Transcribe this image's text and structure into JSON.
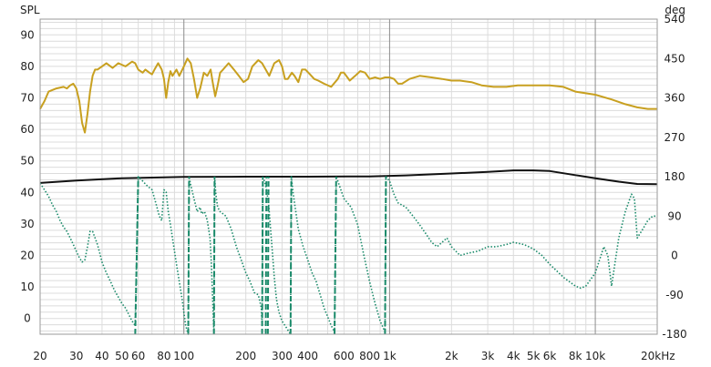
{
  "chart_data": {
    "type": "line",
    "left_axis_unit": "SPL",
    "right_axis_unit": "deg",
    "x_scale": "log",
    "x_range": [
      20,
      20000
    ],
    "y_left_range": [
      -5,
      95
    ],
    "y_right_range": [
      -180,
      540
    ],
    "x_tick_labels": [
      {
        "value": 20,
        "label": "20"
      },
      {
        "value": 30,
        "label": "30"
      },
      {
        "value": 40,
        "label": "40"
      },
      {
        "value": 50,
        "label": "50"
      },
      {
        "value": 60,
        "label": "60"
      },
      {
        "value": 80,
        "label": "80"
      },
      {
        "value": 100,
        "label": "100"
      },
      {
        "value": 200,
        "label": "200"
      },
      {
        "value": 300,
        "label": "300"
      },
      {
        "value": 400,
        "label": "400"
      },
      {
        "value": 600,
        "label": "600"
      },
      {
        "value": 800,
        "label": "800"
      },
      {
        "value": 1000,
        "label": "1k"
      },
      {
        "value": 2000,
        "label": "2k"
      },
      {
        "value": 3000,
        "label": "3k"
      },
      {
        "value": 4000,
        "label": "4k"
      },
      {
        "value": 5000,
        "label": "5k"
      },
      {
        "value": 6000,
        "label": "6k"
      },
      {
        "value": 8000,
        "label": "8k"
      },
      {
        "value": 10000,
        "label": "10k"
      },
      {
        "value": 20000,
        "label": "20kHz"
      }
    ],
    "y_left_ticks": [
      0,
      10,
      20,
      30,
      40,
      50,
      60,
      70,
      80,
      90
    ],
    "y_right_ticks": [
      -180,
      -90,
      0,
      90,
      180,
      270,
      360,
      450,
      540
    ],
    "grid": true,
    "colors": {
      "spl": "#c8a020",
      "flat": "#111111",
      "phase": "#1a8a6a",
      "grid_minor": "#dcdcdc",
      "grid_major": "#8c8c8c"
    },
    "series": [
      {
        "axis": "left",
        "style": "solid",
        "color": "#c8a020",
        "points": [
          [
            20,
            66.5
          ],
          [
            21,
            69
          ],
          [
            22,
            72
          ],
          [
            24,
            73
          ],
          [
            26,
            73.5
          ],
          [
            27,
            73
          ],
          [
            28,
            74
          ],
          [
            29,
            74.5
          ],
          [
            30,
            73
          ],
          [
            31,
            69
          ],
          [
            32,
            62
          ],
          [
            33,
            59
          ],
          [
            34,
            65
          ],
          [
            35,
            72
          ],
          [
            36,
            77
          ],
          [
            37,
            79
          ],
          [
            38,
            79
          ],
          [
            40,
            80
          ],
          [
            42,
            81
          ],
          [
            45,
            79.5
          ],
          [
            48,
            81
          ],
          [
            52,
            80
          ],
          [
            56,
            81.5
          ],
          [
            58,
            81
          ],
          [
            60,
            79
          ],
          [
            63,
            78
          ],
          [
            65,
            79
          ],
          [
            68,
            78
          ],
          [
            70,
            77.5
          ],
          [
            72,
            79
          ],
          [
            75,
            81
          ],
          [
            78,
            79
          ],
          [
            80,
            76
          ],
          [
            82,
            70
          ],
          [
            84,
            75
          ],
          [
            86,
            78.5
          ],
          [
            88,
            77
          ],
          [
            92,
            79
          ],
          [
            95,
            77
          ],
          [
            100,
            80
          ],
          [
            104,
            82.5
          ],
          [
            108,
            81
          ],
          [
            112,
            76
          ],
          [
            116,
            70
          ],
          [
            120,
            73
          ],
          [
            125,
            78
          ],
          [
            130,
            77
          ],
          [
            135,
            79
          ],
          [
            138,
            75
          ],
          [
            142,
            70.5
          ],
          [
            146,
            74
          ],
          [
            150,
            78
          ],
          [
            155,
            79
          ],
          [
            165,
            81
          ],
          [
            175,
            79
          ],
          [
            185,
            77
          ],
          [
            195,
            75
          ],
          [
            205,
            76
          ],
          [
            215,
            80
          ],
          [
            230,
            82
          ],
          [
            240,
            81
          ],
          [
            250,
            79
          ],
          [
            260,
            77
          ],
          [
            275,
            81
          ],
          [
            290,
            82
          ],
          [
            300,
            80
          ],
          [
            310,
            76
          ],
          [
            320,
            76
          ],
          [
            335,
            78
          ],
          [
            345,
            77
          ],
          [
            360,
            75
          ],
          [
            375,
            79
          ],
          [
            390,
            79
          ],
          [
            410,
            77.5
          ],
          [
            430,
            76
          ],
          [
            450,
            75.5
          ],
          [
            480,
            74.5
          ],
          [
            520,
            73.5
          ],
          [
            560,
            76
          ],
          [
            580,
            78
          ],
          [
            600,
            78
          ],
          [
            640,
            75.5
          ],
          [
            680,
            77
          ],
          [
            720,
            78.5
          ],
          [
            760,
            78
          ],
          [
            800,
            76
          ],
          [
            850,
            76.5
          ],
          [
            900,
            76
          ],
          [
            950,
            76.5
          ],
          [
            1000,
            76.5
          ],
          [
            1050,
            76
          ],
          [
            1100,
            74.5
          ],
          [
            1150,
            74.5
          ],
          [
            1250,
            76
          ],
          [
            1400,
            77
          ],
          [
            1600,
            76.5
          ],
          [
            1800,
            76
          ],
          [
            2000,
            75.5
          ],
          [
            2200,
            75.5
          ],
          [
            2500,
            75
          ],
          [
            2800,
            74
          ],
          [
            3200,
            73.5
          ],
          [
            3700,
            73.5
          ],
          [
            4200,
            74
          ],
          [
            5000,
            74
          ],
          [
            6000,
            74
          ],
          [
            7000,
            73.5
          ],
          [
            8000,
            72
          ],
          [
            10000,
            71
          ],
          [
            12000,
            69.5
          ],
          [
            14000,
            68
          ],
          [
            16000,
            67
          ],
          [
            18000,
            66.5
          ],
          [
            20000,
            66.5
          ]
        ]
      },
      {
        "axis": "left",
        "style": "solid",
        "color": "#111111",
        "points": [
          [
            20,
            43
          ],
          [
            30,
            43.8
          ],
          [
            50,
            44.5
          ],
          [
            100,
            44.9
          ],
          [
            200,
            45
          ],
          [
            400,
            45
          ],
          [
            800,
            45.1
          ],
          [
            1200,
            45.4
          ],
          [
            2000,
            46
          ],
          [
            3000,
            46.5
          ],
          [
            4000,
            47
          ],
          [
            5000,
            47
          ],
          [
            6000,
            46.8
          ],
          [
            8000,
            45.5
          ],
          [
            10000,
            44.5
          ],
          [
            13000,
            43.4
          ],
          [
            16000,
            42.7
          ],
          [
            20000,
            42.6
          ]
        ]
      },
      {
        "axis": "right",
        "style": "dotted",
        "color": "#1a8a6a",
        "points": [
          [
            20,
            165
          ],
          [
            21,
            150
          ],
          [
            22,
            135
          ],
          [
            23,
            115
          ],
          [
            24,
            100
          ],
          [
            25,
            80
          ],
          [
            26,
            65
          ],
          [
            27,
            55
          ],
          [
            28,
            40
          ],
          [
            29,
            25
          ],
          [
            30,
            10
          ],
          [
            31,
            -5
          ],
          [
            32,
            -15
          ],
          [
            33,
            -10
          ],
          [
            34,
            20
          ],
          [
            35,
            55
          ],
          [
            36,
            55
          ],
          [
            37,
            40
          ],
          [
            38,
            25
          ],
          [
            39,
            5
          ],
          [
            40,
            -15
          ],
          [
            42,
            -40
          ],
          [
            44,
            -60
          ],
          [
            46,
            -80
          ],
          [
            48,
            -95
          ],
          [
            50,
            -110
          ],
          [
            52,
            -120
          ],
          [
            54,
            -135
          ],
          [
            56,
            -150
          ],
          [
            58,
            -160
          ],
          [
            60,
            180
          ],
          [
            63,
            170
          ],
          [
            66,
            160
          ],
          [
            70,
            150
          ],
          [
            73,
            120
          ],
          [
            76,
            90
          ],
          [
            78,
            80
          ],
          [
            80,
            150
          ],
          [
            82,
            145
          ],
          [
            84,
            100
          ],
          [
            86,
            70
          ],
          [
            88,
            40
          ],
          [
            90,
            10
          ],
          [
            92,
            -20
          ],
          [
            95,
            -60
          ],
          [
            98,
            -100
          ],
          [
            100,
            -130
          ],
          [
            102,
            -160
          ],
          [
            105,
            -180
          ],
          [
            106,
            180
          ],
          [
            108,
            160
          ],
          [
            112,
            130
          ],
          [
            116,
            100
          ],
          [
            120,
            110
          ],
          [
            122,
            95
          ],
          [
            126,
            100
          ],
          [
            130,
            80
          ],
          [
            134,
            40
          ],
          [
            136,
            -20
          ],
          [
            138,
            -100
          ],
          [
            140,
            -180
          ],
          [
            141,
            180
          ],
          [
            143,
            140
          ],
          [
            146,
            110
          ],
          [
            150,
            100
          ],
          [
            160,
            90
          ],
          [
            170,
            60
          ],
          [
            180,
            20
          ],
          [
            190,
            -10
          ],
          [
            200,
            -40
          ],
          [
            210,
            -60
          ],
          [
            220,
            -85
          ],
          [
            230,
            -90
          ],
          [
            238,
            -120
          ],
          [
            240,
            -160
          ],
          [
            242,
            180
          ],
          [
            246,
            170
          ],
          [
            250,
            160
          ],
          [
            254,
            140
          ],
          [
            258,
            120
          ],
          [
            262,
            80
          ],
          [
            266,
            40
          ],
          [
            270,
            0
          ],
          [
            275,
            -50
          ],
          [
            282,
            -100
          ],
          [
            290,
            -130
          ],
          [
            300,
            -150
          ],
          [
            315,
            -165
          ],
          [
            330,
            -180
          ],
          [
            333,
            180
          ],
          [
            340,
            140
          ],
          [
            350,
            100
          ],
          [
            360,
            60
          ],
          [
            380,
            20
          ],
          [
            400,
            -10
          ],
          [
            420,
            -40
          ],
          [
            440,
            -60
          ],
          [
            460,
            -90
          ],
          [
            480,
            -120
          ],
          [
            500,
            -140
          ],
          [
            520,
            -160
          ],
          [
            540,
            -175
          ],
          [
            550,
            180
          ],
          [
            560,
            170
          ],
          [
            600,
            130
          ],
          [
            650,
            110
          ],
          [
            700,
            70
          ],
          [
            750,
            0
          ],
          [
            800,
            -60
          ],
          [
            850,
            -110
          ],
          [
            900,
            -150
          ],
          [
            950,
            -175
          ],
          [
            960,
            180
          ],
          [
            1000,
            170
          ],
          [
            1050,
            140
          ],
          [
            1100,
            120
          ],
          [
            1200,
            110
          ],
          [
            1300,
            90
          ],
          [
            1400,
            70
          ],
          [
            1500,
            50
          ],
          [
            1600,
            30
          ],
          [
            1700,
            20
          ],
          [
            1800,
            30
          ],
          [
            1900,
            40
          ],
          [
            2000,
            20
          ],
          [
            2200,
            0
          ],
          [
            2400,
            5
          ],
          [
            2700,
            10
          ],
          [
            3000,
            20
          ],
          [
            3300,
            20
          ],
          [
            3700,
            25
          ],
          [
            4000,
            30
          ],
          [
            4500,
            25
          ],
          [
            5000,
            15
          ],
          [
            5500,
            0
          ],
          [
            6000,
            -20
          ],
          [
            7000,
            -50
          ],
          [
            8000,
            -70
          ],
          [
            8500,
            -75
          ],
          [
            9000,
            -70
          ],
          [
            10000,
            -40
          ],
          [
            11000,
            20
          ],
          [
            11500,
            0
          ],
          [
            12000,
            -70
          ],
          [
            13000,
            40
          ],
          [
            14000,
            100
          ],
          [
            15000,
            140
          ],
          [
            15500,
            130
          ],
          [
            16000,
            40
          ],
          [
            17000,
            60
          ],
          [
            18000,
            80
          ],
          [
            19000,
            90
          ],
          [
            20000,
            90
          ]
        ]
      },
      {
        "axis": "right",
        "style": "dashed",
        "color": "#1a8a6a",
        "segments": [
          [
            58,
            60,
            -180,
            180
          ],
          [
            105,
            106,
            -180,
            180
          ],
          [
            140,
            141,
            -180,
            180
          ],
          [
            240,
            242,
            -180,
            180
          ],
          [
            250,
            252,
            -180,
            180
          ],
          [
            256,
            258,
            -180,
            180
          ],
          [
            330,
            333,
            -180,
            180
          ],
          [
            540,
            550,
            -180,
            180
          ],
          [
            950,
            960,
            -180,
            180
          ]
        ]
      }
    ]
  }
}
